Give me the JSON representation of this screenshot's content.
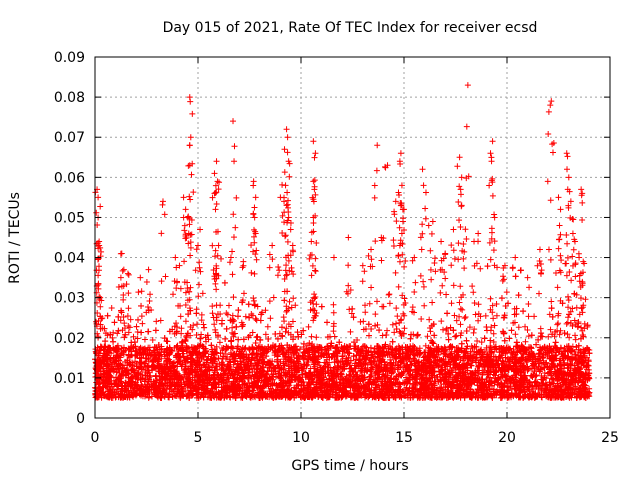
{
  "chart_data": {
    "type": "scatter",
    "title": "Day 015 of 2021, Rate Of TEC Index for receiver ecsd",
    "xlabel": "GPS time / hours",
    "ylabel": "ROTI / TECUs",
    "xlim": [
      0,
      25
    ],
    "ylim": [
      0,
      0.09
    ],
    "x_ticks": [
      "0",
      "5",
      "10",
      "15",
      "20",
      "25"
    ],
    "y_ticks": [
      "0",
      "0.01",
      "0.02",
      "0.03",
      "0.04",
      "0.05",
      "0.06",
      "0.07",
      "0.08",
      "0.09"
    ],
    "x_tick_values": [
      0,
      5,
      10,
      15,
      20,
      25
    ],
    "y_tick_values": [
      0,
      0.01,
      0.02,
      0.03,
      0.04,
      0.05,
      0.06,
      0.07,
      0.08,
      0.09
    ],
    "grid": true,
    "marker": "+",
    "color": "#ff0000",
    "x_range_of_data": [
      0,
      24
    ],
    "baseline_band": [
      0.005,
      0.018
    ],
    "points": [
      [
        0.1,
        0.057
      ],
      [
        0.15,
        0.055
      ],
      [
        0.15,
        0.05
      ],
      [
        0.2,
        0.044
      ],
      [
        0.2,
        0.043
      ],
      [
        0.25,
        0.03
      ],
      [
        0.05,
        0.024
      ],
      [
        1.3,
        0.041
      ],
      [
        1.4,
        0.037
      ],
      [
        1.6,
        0.036
      ],
      [
        2.2,
        0.035
      ],
      [
        2.6,
        0.037
      ],
      [
        3.3,
        0.054
      ],
      [
        3.9,
        0.04
      ],
      [
        4.1,
        0.038
      ],
      [
        4.3,
        0.055
      ],
      [
        4.4,
        0.052
      ],
      [
        4.5,
        0.05
      ],
      [
        4.6,
        0.08
      ],
      [
        4.65,
        0.07
      ],
      [
        4.6,
        0.068
      ],
      [
        4.6,
        0.063
      ],
      [
        4.55,
        0.046
      ],
      [
        5.0,
        0.043
      ],
      [
        5.1,
        0.047
      ],
      [
        5.8,
        0.061
      ],
      [
        5.9,
        0.064
      ],
      [
        5.95,
        0.059
      ],
      [
        5.8,
        0.056
      ],
      [
        5.85,
        0.052
      ],
      [
        6.0,
        0.043
      ],
      [
        6.6,
        0.04
      ],
      [
        6.7,
        0.074
      ],
      [
        6.75,
        0.064
      ],
      [
        7.2,
        0.039
      ],
      [
        7.7,
        0.059
      ],
      [
        7.8,
        0.055
      ],
      [
        7.75,
        0.05
      ],
      [
        7.8,
        0.046
      ],
      [
        8.6,
        0.043
      ],
      [
        9.0,
        0.055
      ],
      [
        9.2,
        0.067
      ],
      [
        9.3,
        0.072
      ],
      [
        9.35,
        0.07
      ],
      [
        9.4,
        0.064
      ],
      [
        9.25,
        0.058
      ],
      [
        9.3,
        0.053
      ],
      [
        9.4,
        0.05
      ],
      [
        9.5,
        0.047
      ],
      [
        9.6,
        0.043
      ],
      [
        10.6,
        0.069
      ],
      [
        10.7,
        0.066
      ],
      [
        10.6,
        0.059
      ],
      [
        10.65,
        0.057
      ],
      [
        10.6,
        0.05
      ],
      [
        10.5,
        0.044
      ],
      [
        11.6,
        0.04
      ],
      [
        12.3,
        0.045
      ],
      [
        13.0,
        0.038
      ],
      [
        13.4,
        0.042
      ],
      [
        13.7,
        0.068
      ],
      [
        13.9,
        0.045
      ],
      [
        14.2,
        0.063
      ],
      [
        14.6,
        0.054
      ],
      [
        14.8,
        0.064
      ],
      [
        14.85,
        0.066
      ],
      [
        14.9,
        0.058
      ],
      [
        15.0,
        0.052
      ],
      [
        14.95,
        0.049
      ],
      [
        14.8,
        0.043
      ],
      [
        15.5,
        0.04
      ],
      [
        15.9,
        0.062
      ],
      [
        15.95,
        0.058
      ],
      [
        16.2,
        0.048
      ],
      [
        16.4,
        0.049
      ],
      [
        16.8,
        0.044
      ],
      [
        17.0,
        0.041
      ],
      [
        17.4,
        0.047
      ],
      [
        17.7,
        0.065
      ],
      [
        17.8,
        0.06
      ],
      [
        17.75,
        0.057
      ],
      [
        17.8,
        0.053
      ],
      [
        18.1,
        0.083
      ],
      [
        18.4,
        0.044
      ],
      [
        18.6,
        0.046
      ],
      [
        19.2,
        0.066
      ],
      [
        19.3,
        0.069
      ],
      [
        19.25,
        0.064
      ],
      [
        19.4,
        0.05
      ],
      [
        19.9,
        0.038
      ],
      [
        20.4,
        0.04
      ],
      [
        21.0,
        0.035
      ],
      [
        21.6,
        0.042
      ],
      [
        22.1,
        0.078
      ],
      [
        22.15,
        0.079
      ],
      [
        22.5,
        0.055
      ],
      [
        22.6,
        0.052
      ],
      [
        22.55,
        0.048
      ],
      [
        22.9,
        0.066
      ],
      [
        23.0,
        0.06
      ],
      [
        22.95,
        0.057
      ],
      [
        23.1,
        0.054
      ],
      [
        23.2,
        0.046
      ],
      [
        23.3,
        0.044
      ],
      [
        23.5,
        0.04
      ],
      [
        23.6,
        0.057
      ],
      [
        23.65,
        0.056
      ],
      [
        23.7,
        0.039
      ]
    ]
  }
}
